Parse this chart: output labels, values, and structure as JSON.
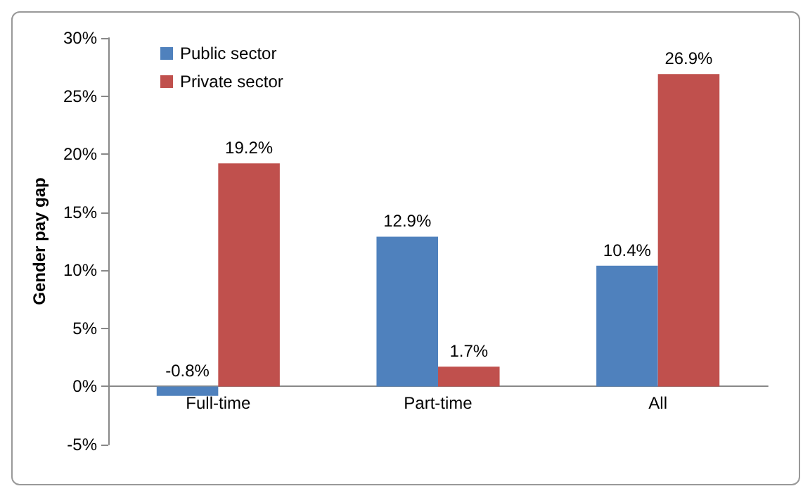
{
  "chart_data": {
    "type": "bar",
    "ylabel": "Gender pay gap",
    "categories": [
      "Full-time",
      "Part-time",
      "All"
    ],
    "series": [
      {
        "name": "Public sector",
        "color": "#4f81bd",
        "values": [
          -0.8,
          12.9,
          10.4
        ],
        "value_labels": [
          "-0.8%",
          "12.9%",
          "10.4%"
        ]
      },
      {
        "name": "Private sector",
        "color": "#c0504d",
        "values": [
          19.2,
          1.7,
          26.9
        ],
        "value_labels": [
          "19.2%",
          "1.7%",
          "26.9%"
        ]
      }
    ],
    "ylim": [
      -5,
      30
    ],
    "yticks": [
      {
        "value": -5,
        "label": "-5%"
      },
      {
        "value": 0,
        "label": "0%"
      },
      {
        "value": 5,
        "label": "5%"
      },
      {
        "value": 10,
        "label": "10%"
      },
      {
        "value": 15,
        "label": "15%"
      },
      {
        "value": 20,
        "label": "20%"
      },
      {
        "value": 25,
        "label": "25%"
      },
      {
        "value": 30,
        "label": "30%"
      }
    ],
    "grid": false,
    "legend": "top left"
  }
}
